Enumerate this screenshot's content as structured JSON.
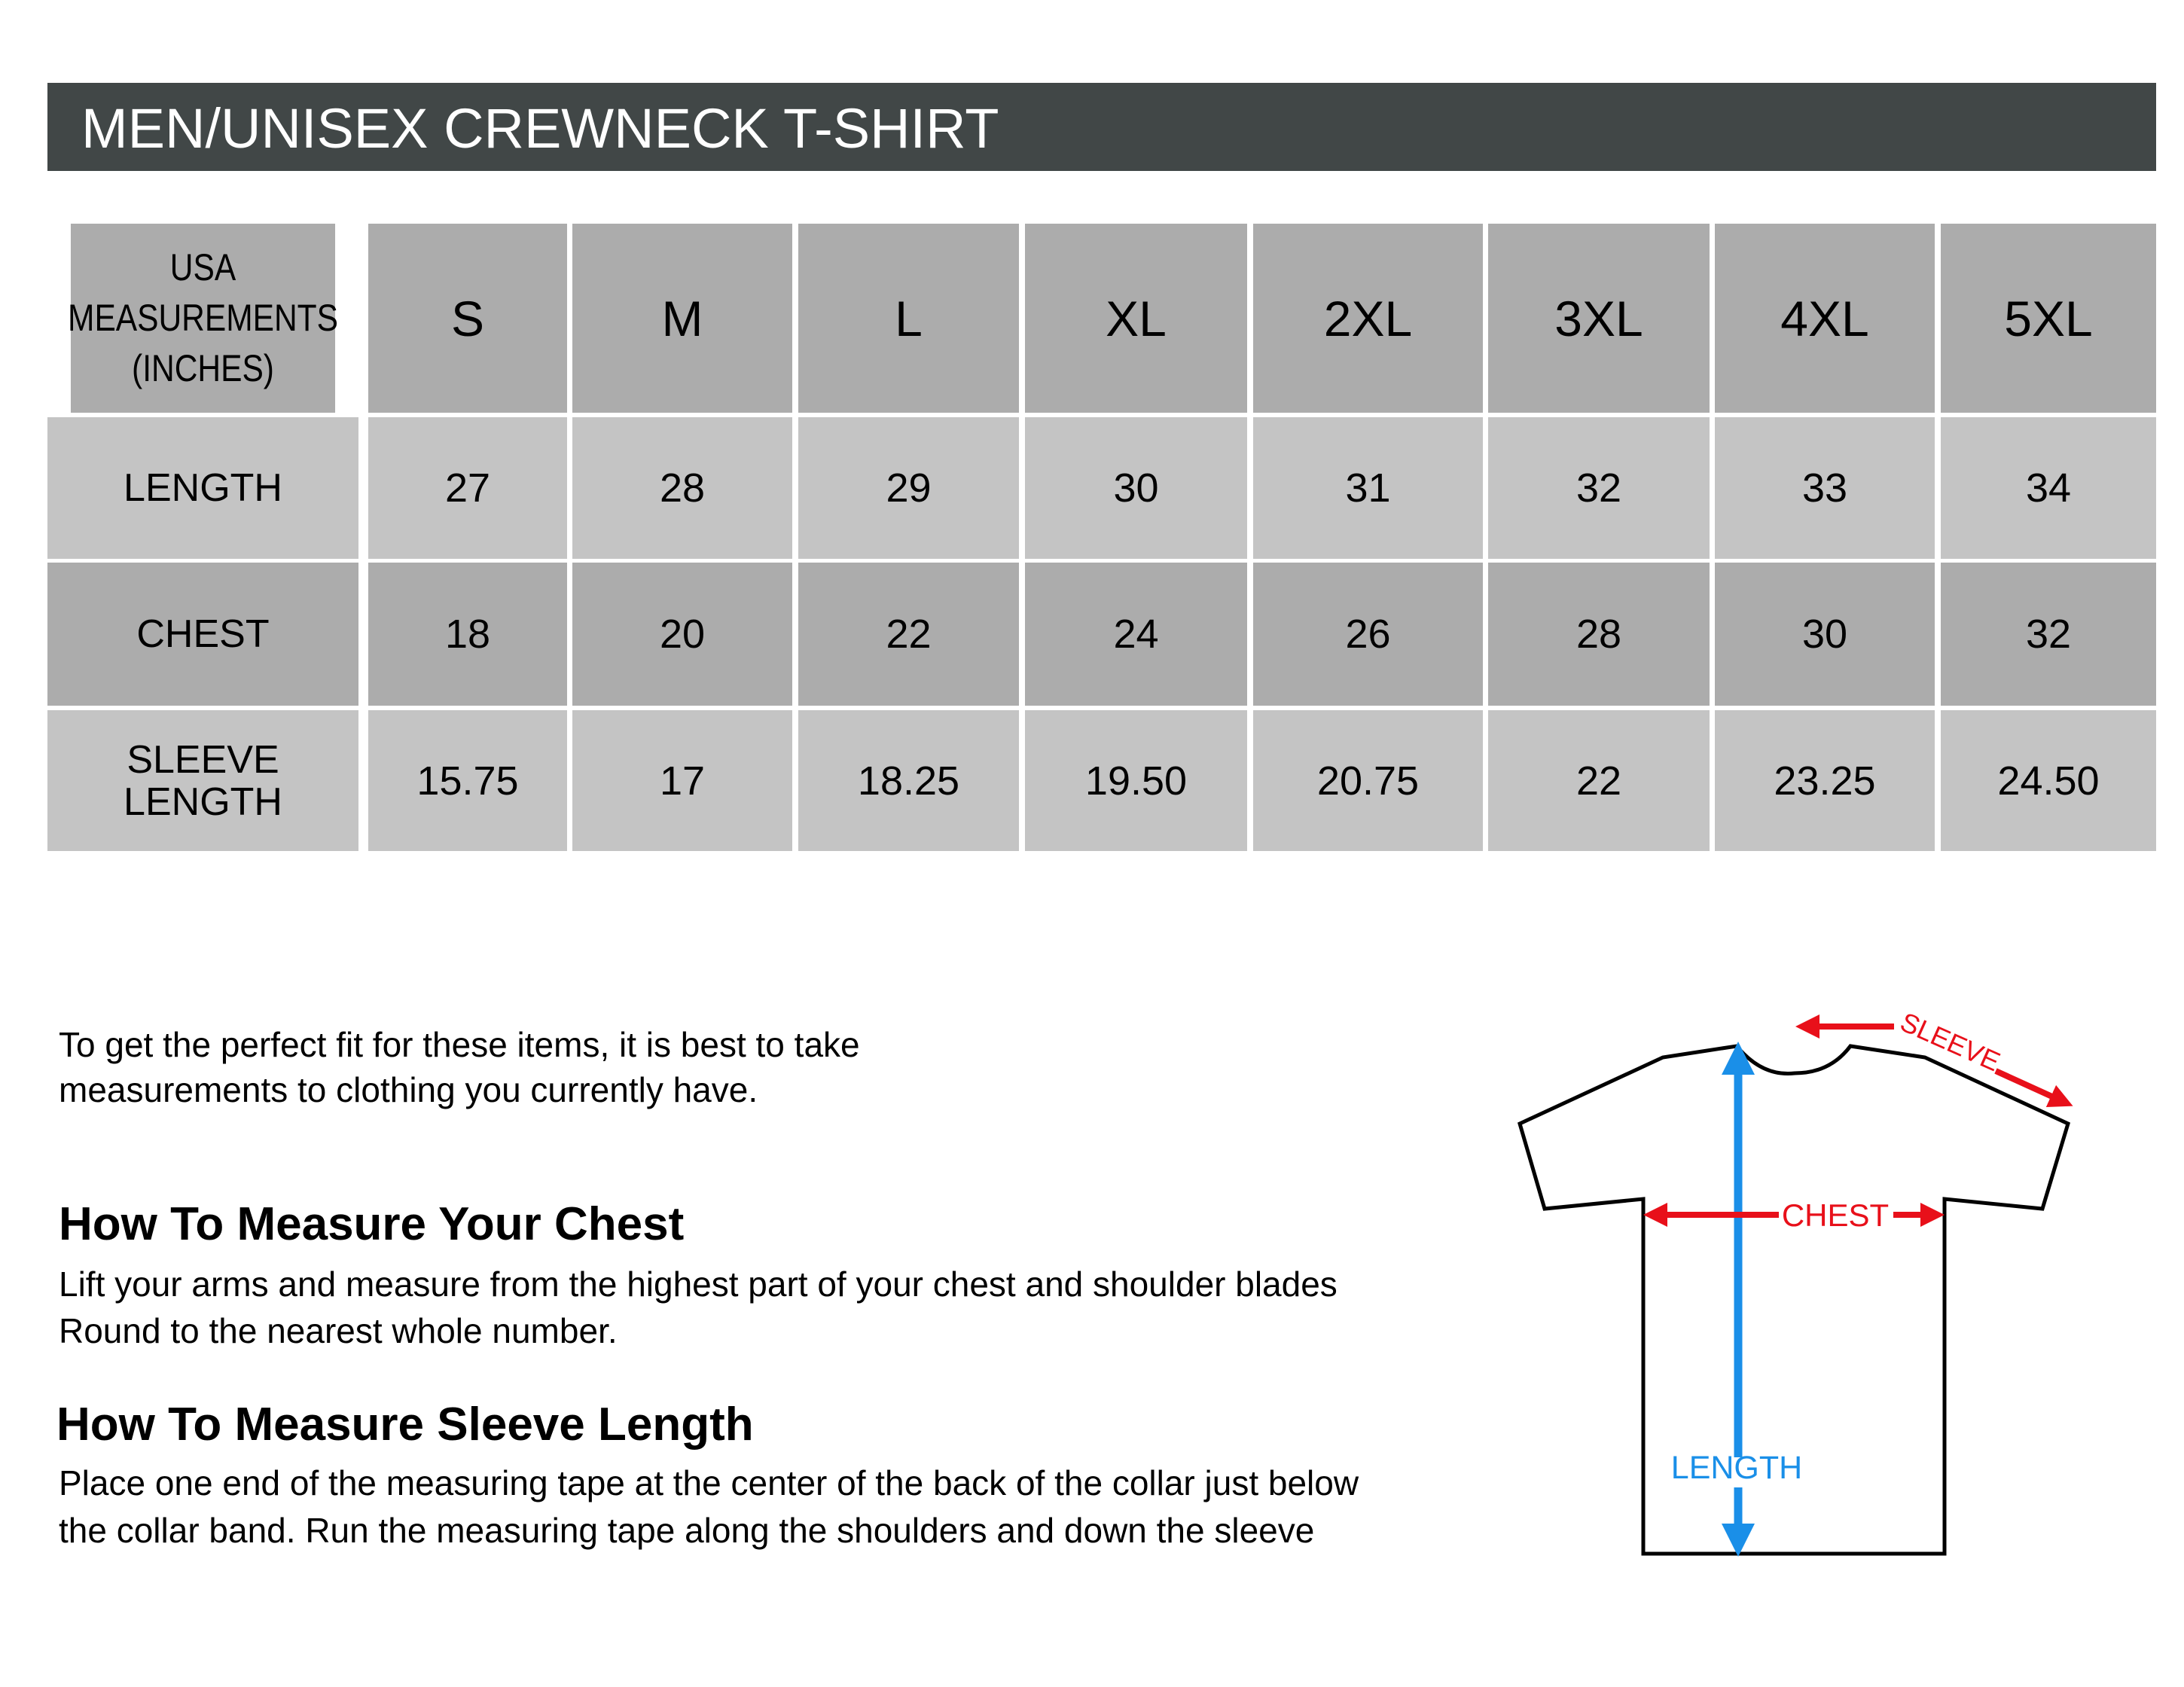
{
  "title": "MEN/UNISEX CREWNECK T-SHIRT",
  "table": {
    "corner_label": [
      "USA",
      "MEASUREMENTS",
      "(INCHES)"
    ],
    "sizes": [
      "S",
      "M",
      "L",
      "XL",
      "2XL",
      "3XL",
      "4XL",
      "5XL"
    ],
    "rows": [
      {
        "label": "LENGTH",
        "values": [
          "27",
          "28",
          "29",
          "30",
          "31",
          "32",
          "33",
          "34"
        ]
      },
      {
        "label": "CHEST",
        "values": [
          "18",
          "20",
          "22",
          "24",
          "26",
          "28",
          "30",
          "32"
        ]
      },
      {
        "label": "SLEEVE LENGTH",
        "label_lines": [
          "SLEEVE",
          "LENGTH"
        ],
        "values": [
          "15.75",
          "17",
          "18.25",
          "19.50",
          "20.75",
          "22",
          "23.25",
          "24.50"
        ]
      }
    ]
  },
  "intro": [
    "To get the perfect fit for these items, it is best to take",
    "measurements to clothing you currently have."
  ],
  "chest_section": {
    "heading": "How To Measure Your Chest",
    "lines": [
      "Lift your arms and measure from the highest part of your chest and shoulder blades",
      "Round to the nearest whole number."
    ]
  },
  "sleeve_section": {
    "heading": "How To Measure Sleeve Length",
    "lines": [
      "Place one end of the measuring tape at the center of the back of the collar just below",
      "the collar band. Run the measuring tape along the shoulders and down the sleeve"
    ]
  },
  "diagram": {
    "sleeve_label": "SLEEVE",
    "chest_label": "CHEST",
    "length_label": "LENGTH",
    "colors": {
      "red": "#e8101a",
      "blue": "#1a8fe8",
      "banner": "#414747"
    }
  }
}
